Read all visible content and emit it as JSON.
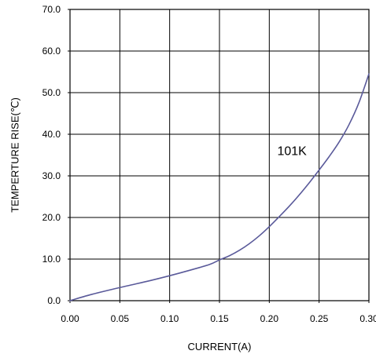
{
  "chart_data": {
    "type": "line",
    "xlabel": "CURRENT(A)",
    "ylabel": "TEMPERTURE RISE(℃)",
    "xlim": [
      0,
      0.3
    ],
    "ylim": [
      0,
      70
    ],
    "grid": true,
    "x_ticks": [
      0,
      0.05,
      0.1,
      0.15,
      0.2,
      0.25,
      0.3
    ],
    "x_tick_labels": [
      "0.00",
      "0.05",
      "0.10",
      "0.15",
      "0.20",
      "0.25",
      "0.30"
    ],
    "y_ticks": [
      0,
      10,
      20,
      30,
      40,
      50,
      60,
      70
    ],
    "y_tick_labels": [
      "0.0",
      "10.0",
      "20.0",
      "30.0",
      "40.0",
      "50.0",
      "60.0",
      "70.0"
    ],
    "colors": {
      "series": "#5a5a9a",
      "grid": "#000000",
      "axis": "#000000"
    },
    "series": [
      {
        "name": "101K",
        "label_anchor": {
          "x": 0.208,
          "y": 35.0
        },
        "x": [
          0,
          0.02,
          0.04,
          0.06,
          0.08,
          0.1,
          0.12,
          0.14,
          0.15,
          0.16,
          0.17,
          0.18,
          0.19,
          0.2,
          0.21,
          0.22,
          0.23,
          0.24,
          0.25,
          0.26,
          0.27,
          0.28,
          0.29,
          0.3
        ],
        "y": [
          0,
          1.4,
          2.6,
          3.7,
          4.8,
          6.0,
          7.3,
          8.7,
          9.8,
          10.8,
          12.1,
          13.7,
          15.6,
          17.8,
          20.2,
          22.7,
          25.4,
          28.3,
          31.4,
          34.6,
          38.1,
          42.3,
          47.6,
          54.5
        ]
      }
    ]
  }
}
